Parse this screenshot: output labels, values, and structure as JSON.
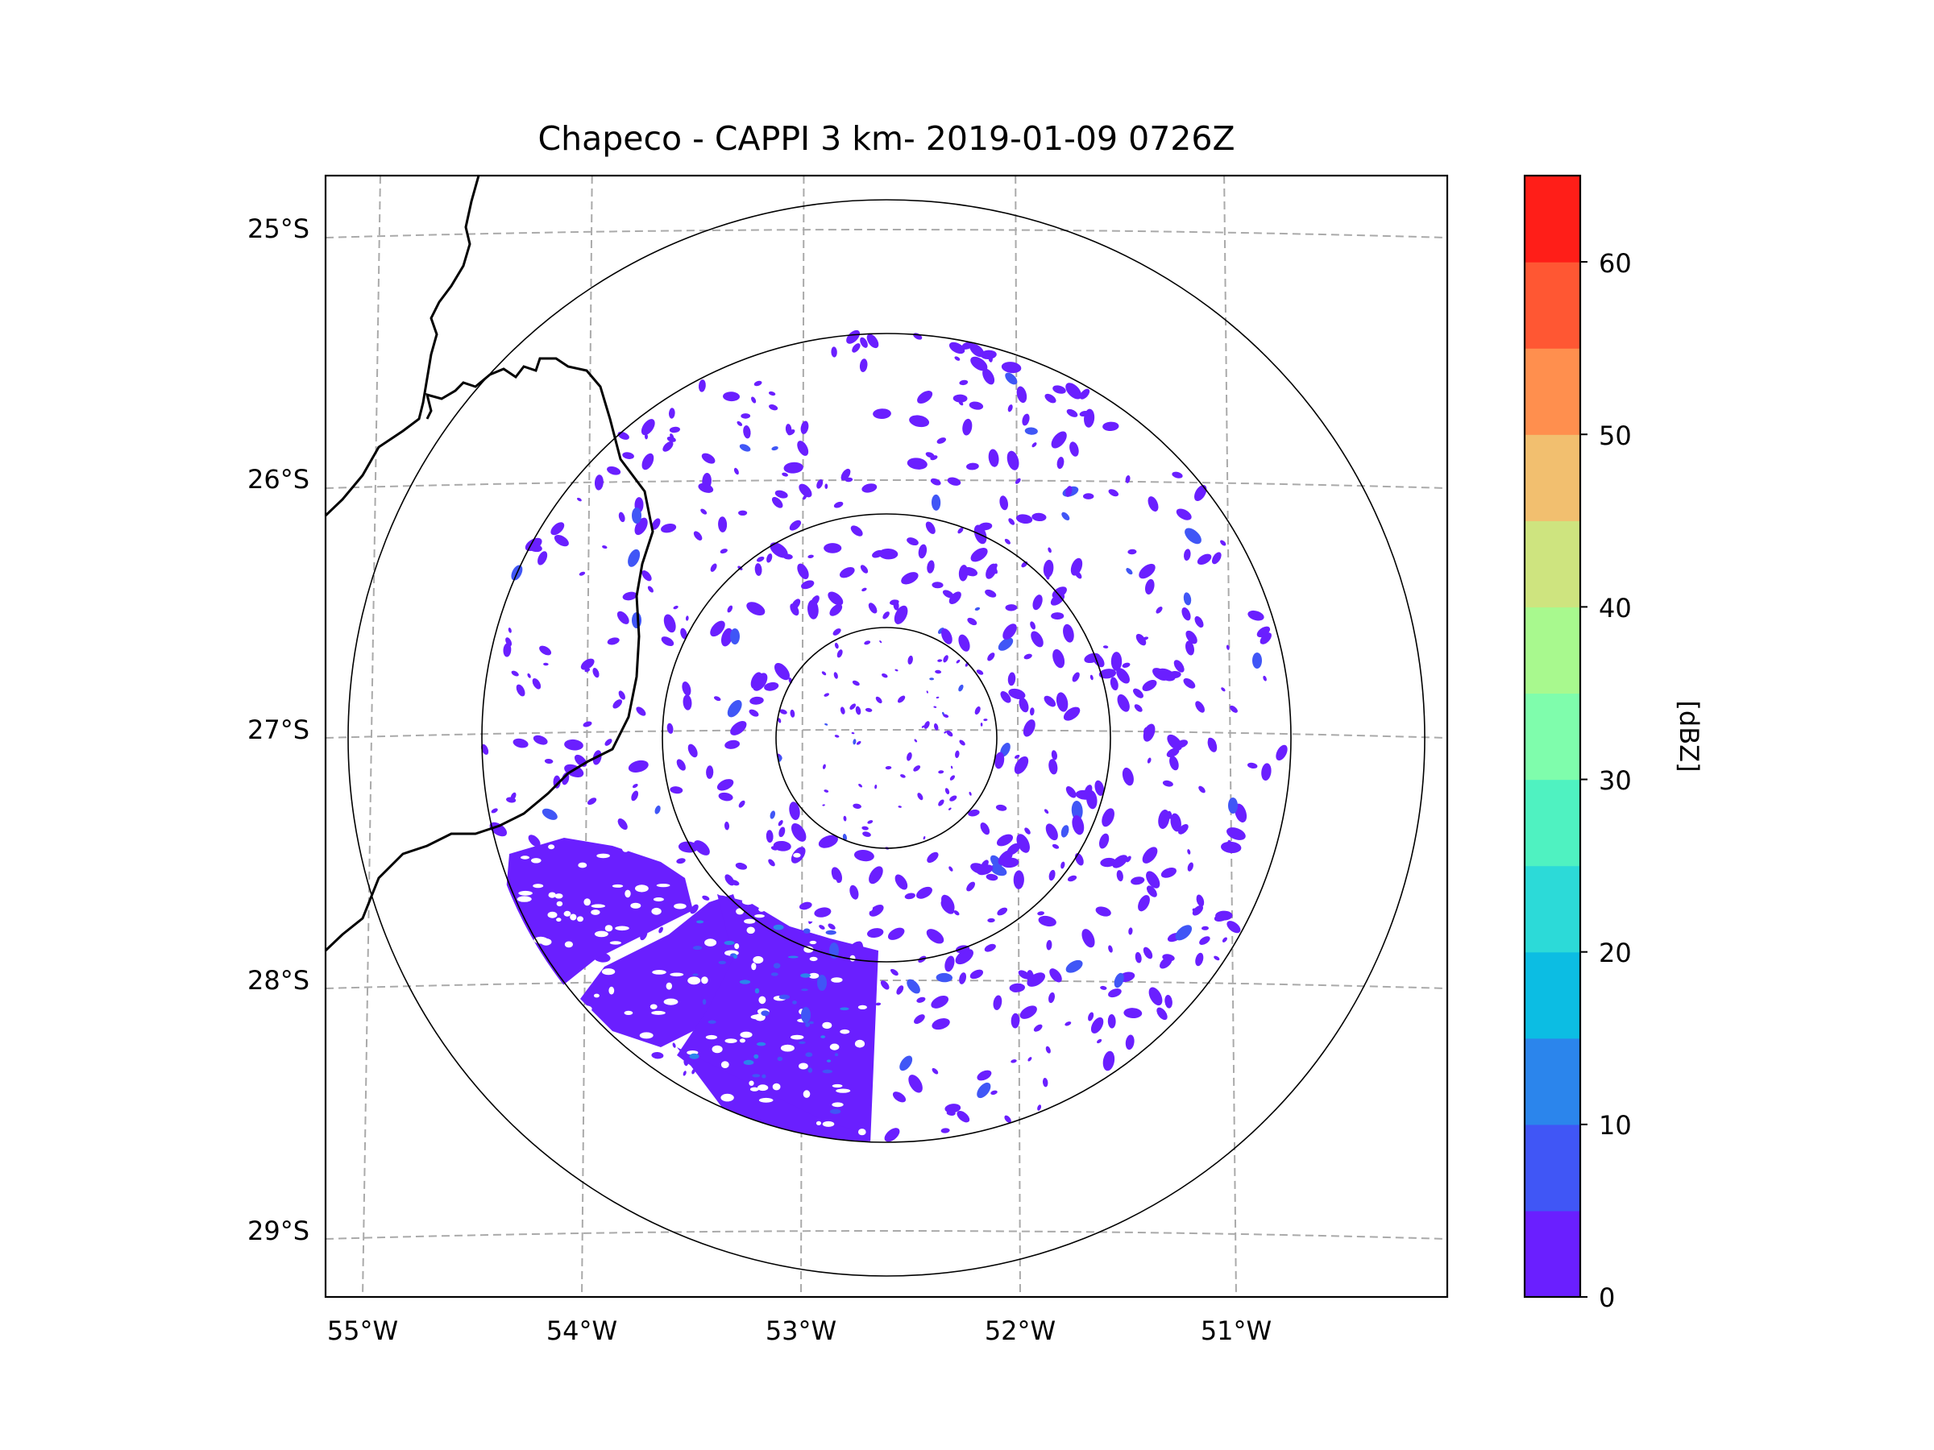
{
  "chart_data": {
    "type": "heatmap",
    "title": "Chapeco - CAPPI 3 km- 2019-01-09 0726Z",
    "radar_site": "Chapeco",
    "product": "CAPPI 3 km",
    "datetime": "2019-01-09 0726Z",
    "radar_center": {
      "lon": -52.6,
      "lat": -27.03
    },
    "range_rings_km": [
      50,
      100,
      200,
      240
    ],
    "lon_range": [
      -55.2,
      -50.05
    ],
    "lat_range": [
      -29.3,
      -24.8
    ],
    "lon_ticks": [
      {
        "value": -55,
        "label": "55°W"
      },
      {
        "value": -54,
        "label": "54°W"
      },
      {
        "value": -53,
        "label": "53°W"
      },
      {
        "value": -52,
        "label": "52°W"
      },
      {
        "value": -51,
        "label": "51°W"
      }
    ],
    "lat_ticks": [
      {
        "value": -25,
        "label": "25°S"
      },
      {
        "value": -26,
        "label": "26°S"
      },
      {
        "value": -27,
        "label": "27°S"
      },
      {
        "value": -28,
        "label": "28°S"
      },
      {
        "value": -29,
        "label": "29°S"
      }
    ],
    "gridlines": true,
    "colorbar": {
      "label": "[dBZ]",
      "range": [
        0,
        65
      ],
      "levels": [
        0,
        5,
        10,
        15,
        20,
        25,
        30,
        35,
        40,
        45,
        50,
        55,
        60,
        65
      ],
      "colors": [
        "#6a1fff",
        "#4056f6",
        "#2b85ec",
        "#0cbde3",
        "#2cdad8",
        "#4ff2c1",
        "#7ffdac",
        "#a8f98e",
        "#cee47f",
        "#f2bf6f",
        "#ff8f4e",
        "#ff5733",
        "#ff1e18"
      ],
      "ticks": [
        {
          "value": 0,
          "label": "0"
        },
        {
          "value": 10,
          "label": "10"
        },
        {
          "value": 20,
          "label": "20"
        },
        {
          "value": 30,
          "label": "30"
        },
        {
          "value": 40,
          "label": "40"
        },
        {
          "value": 50,
          "label": "50"
        },
        {
          "value": 60,
          "label": "60"
        }
      ]
    },
    "echo_region": {
      "description": "weak echoes 0-10 dBZ, dense precipitation in SW sector",
      "dominant_dbz": [
        0,
        5
      ]
    }
  }
}
